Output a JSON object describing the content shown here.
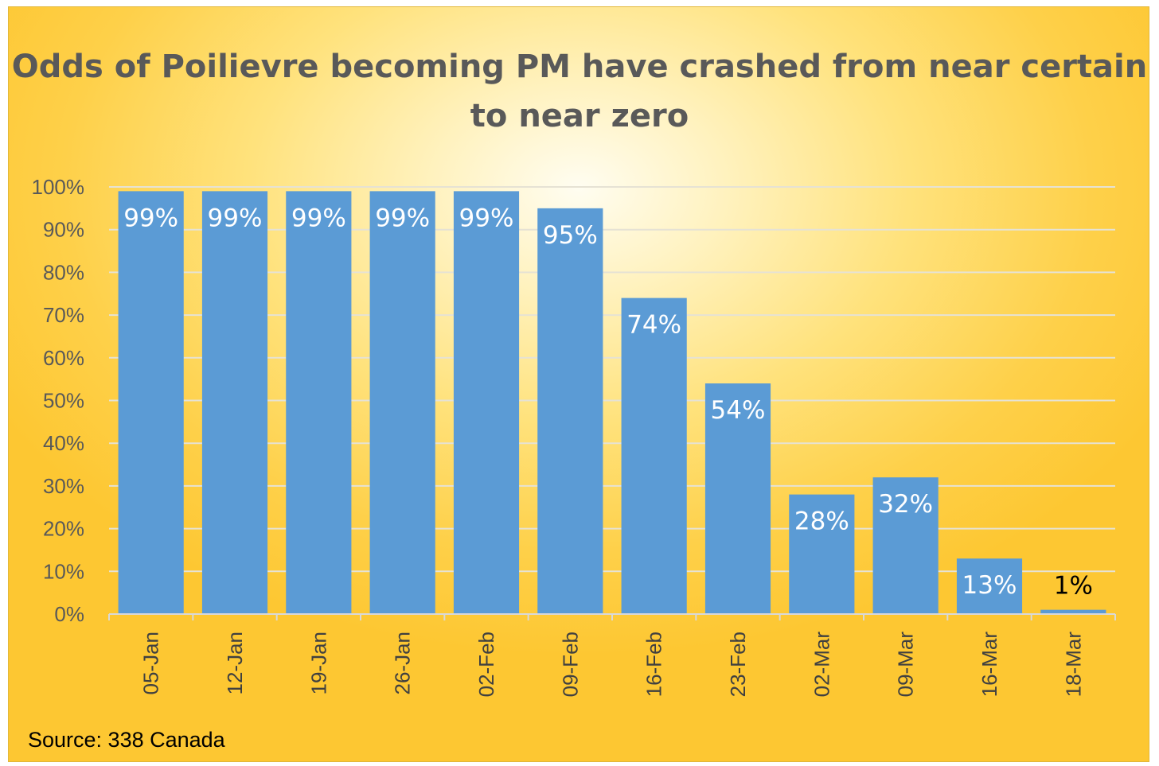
{
  "chart_data": {
    "type": "bar",
    "title": "Odds of Poilievre becoming PM have crashed from near certain to near zero",
    "xlabel": "",
    "ylabel": "",
    "categories": [
      "05-Jan",
      "12-Jan",
      "19-Jan",
      "26-Jan",
      "02-Feb",
      "09-Feb",
      "16-Feb",
      "23-Feb",
      "02-Mar",
      "09-Mar",
      "16-Mar",
      "18-Mar"
    ],
    "values": [
      99,
      99,
      99,
      99,
      99,
      95,
      74,
      54,
      28,
      32,
      13,
      1
    ],
    "value_labels": [
      "99%",
      "99%",
      "99%",
      "99%",
      "99%",
      "95%",
      "74%",
      "54%",
      "28%",
      "32%",
      "13%",
      "1%"
    ],
    "ylim": [
      0,
      100
    ],
    "ytick_values": [
      0,
      10,
      20,
      30,
      40,
      50,
      60,
      70,
      80,
      90,
      100
    ],
    "ytick_labels": [
      "0%",
      "10%",
      "20%",
      "30%",
      "40%",
      "50%",
      "60%",
      "70%",
      "80%",
      "90%",
      "100%"
    ],
    "grid": true,
    "legend": "none",
    "bar_color": "#5b9bd5",
    "label_color_inside": "#ffffff",
    "label_color_outside": "#000000",
    "grid_color": "#e6e2d4",
    "source": "Source: 338 Canada"
  }
}
